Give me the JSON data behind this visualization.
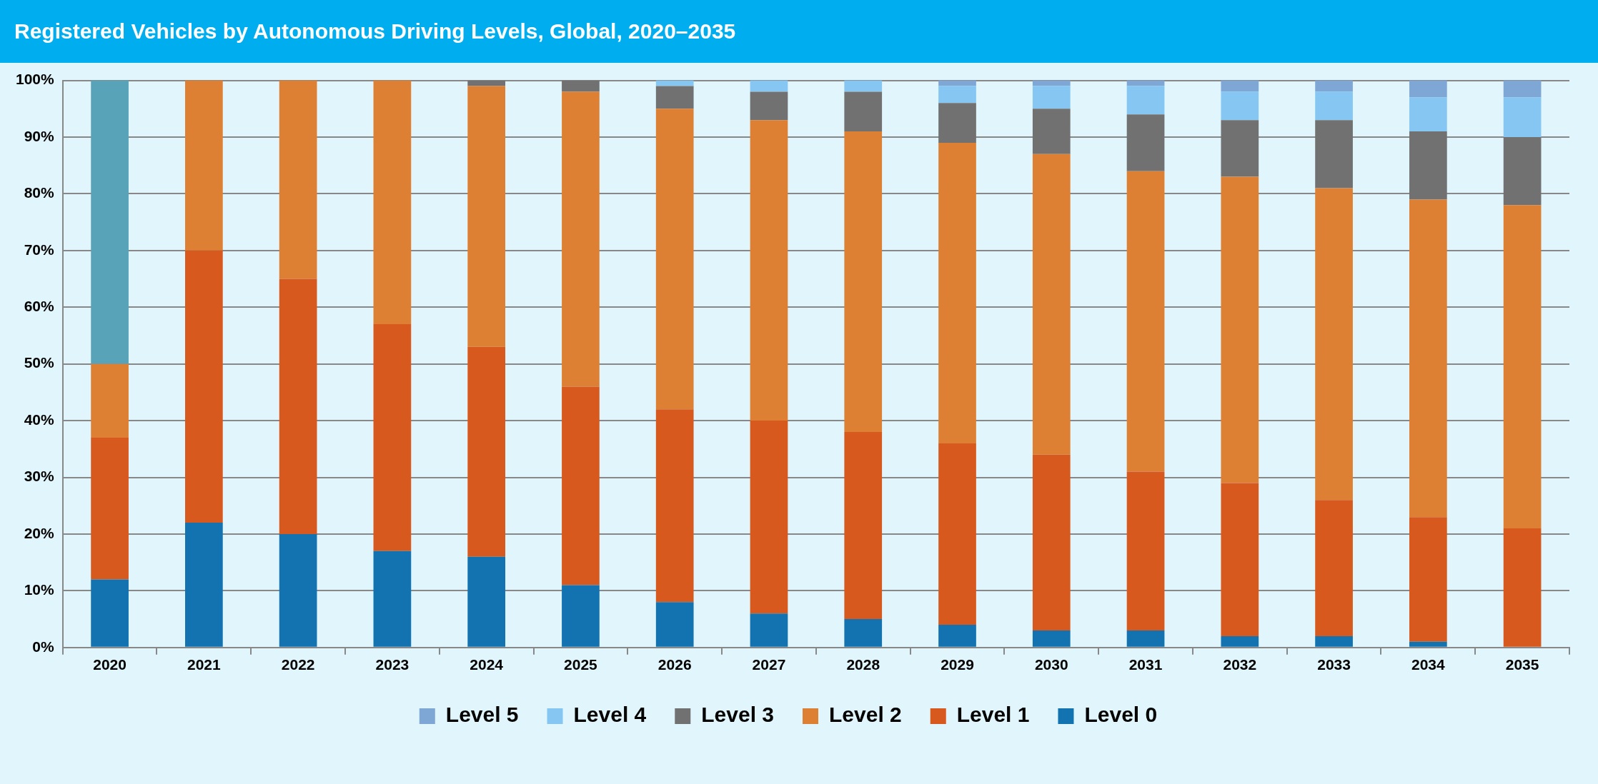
{
  "chart_data": {
    "type": "bar",
    "title": "Registered Vehicles by Autonomous Driving Levels, Global, 2020–2035",
    "stacked": true,
    "grid": "y",
    "legend": "bottom",
    "categories": [
      "2020",
      "2021",
      "2022",
      "2023",
      "2024",
      "2025",
      "2026",
      "2027",
      "2028",
      "2029",
      "2030",
      "2031",
      "2032",
      "2033",
      "2034",
      "2035"
    ],
    "ylim": [
      0,
      100
    ],
    "yticks": [
      {
        "value": 0,
        "label": "0%"
      },
      {
        "value": 10,
        "label": "10%"
      },
      {
        "value": 20,
        "label": "20%"
      },
      {
        "value": 30,
        "label": "30%"
      },
      {
        "value": 40,
        "label": "40%"
      },
      {
        "value": 50,
        "label": "50%"
      },
      {
        "value": 60,
        "label": "60%"
      },
      {
        "value": 70,
        "label": "70%"
      },
      {
        "value": 80,
        "label": "80%"
      },
      {
        "value": 90,
        "label": "90%"
      },
      {
        "value": 100,
        "label": "100%"
      }
    ],
    "series": [
      {
        "name": "Level 0",
        "color": "#1372b0",
        "values": [
          12,
          22,
          20,
          17,
          16,
          11,
          8,
          6,
          5,
          4,
          3,
          3,
          2,
          2,
          1,
          0
        ]
      },
      {
        "name": "Level 1",
        "color": "#d7591e",
        "values": [
          25,
          48,
          45,
          40,
          37,
          35,
          34,
          34,
          33,
          32,
          31,
          28,
          27,
          24,
          22,
          21
        ]
      },
      {
        "name": "Level 2",
        "color": "#dd8034",
        "values": [
          13,
          30,
          35,
          43,
          46,
          52,
          53,
          53,
          53,
          53,
          53,
          53,
          54,
          55,
          56,
          57
        ]
      },
      {
        "name": "Level 3",
        "color": "#717171",
        "values": [
          0,
          0,
          0,
          0,
          1,
          2,
          4,
          5,
          7,
          7,
          8,
          10,
          10,
          12,
          12,
          12
        ]
      },
      {
        "name": "Level 4",
        "color": "#85c6f2",
        "values": [
          0,
          0,
          0,
          0,
          0,
          0,
          1,
          2,
          2,
          3,
          4,
          5,
          5,
          5,
          6,
          7
        ]
      },
      {
        "name": "Level 5",
        "color": "#7fa7d6",
        "values": [
          0,
          0,
          0,
          0,
          0,
          0,
          0,
          0,
          0,
          1,
          1,
          1,
          2,
          2,
          3,
          3
        ]
      },
      {
        "color": "#59a3b8",
        "values": [
          50,
          null,
          null,
          null,
          null,
          null,
          null,
          null,
          null,
          null,
          null,
          null,
          null,
          null,
          null,
          null
        ]
      }
    ]
  }
}
